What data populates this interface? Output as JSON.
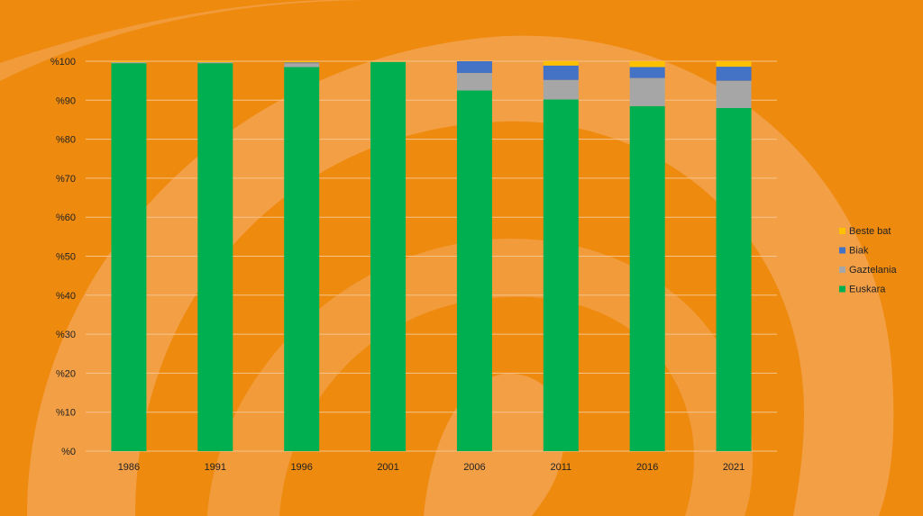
{
  "chart_data": {
    "type": "bar",
    "stacked": true,
    "categories": [
      "1986",
      "1991",
      "1996",
      "2001",
      "2006",
      "2011",
      "2016",
      "2021"
    ],
    "series": [
      {
        "name": "Euskara",
        "color": "#00B050",
        "values": [
          99.5,
          99.5,
          98.5,
          99.8,
          92.5,
          90.2,
          88.5,
          88.0
        ]
      },
      {
        "name": "Gaztelania",
        "color": "#A6A6A6",
        "values": [
          0.3,
          0.3,
          1.0,
          0.1,
          4.5,
          5.0,
          7.2,
          7.0
        ]
      },
      {
        "name": "Biak",
        "color": "#4472C4",
        "values": [
          0.0,
          0.0,
          0.2,
          0.0,
          3.0,
          3.7,
          2.8,
          3.6
        ]
      },
      {
        "name": "Beste bat",
        "color": "#FFC000",
        "values": [
          0.2,
          0.2,
          0.3,
          0.1,
          0.0,
          1.1,
          1.5,
          1.4
        ]
      }
    ],
    "ylim": [
      0,
      100
    ],
    "yticks": [
      0,
      10,
      20,
      30,
      40,
      50,
      60,
      70,
      80,
      90,
      100
    ],
    "ytick_prefix": "%",
    "grid": true,
    "legend": "right",
    "title": "",
    "xlabel": "",
    "ylabel": ""
  },
  "colors": {
    "background": "#EE8A0E",
    "swirl": "#F4A65A",
    "gridline": "#F6C48A"
  }
}
